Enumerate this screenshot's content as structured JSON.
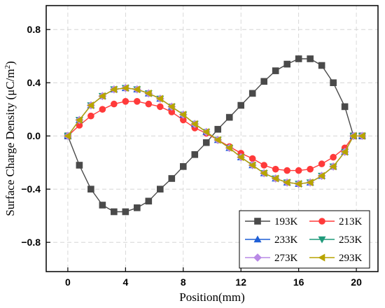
{
  "chart_data": {
    "type": "line",
    "xlabel": "Position(mm)",
    "ylabel_parts": [
      "Surface Charge Density (",
      "μC/m",
      "2",
      ")"
    ],
    "xlim": [
      -1.5,
      21.5
    ],
    "ylim": [
      -1.02,
      0.98
    ],
    "xticks": [
      0,
      4,
      8,
      12,
      16,
      20
    ],
    "xtick_labels": [
      "0",
      "4",
      "8",
      "12",
      "16",
      "20"
    ],
    "yticks": [
      0.8,
      0.4,
      0.0,
      -0.4,
      -0.8
    ],
    "ytick_labels": [
      "0.8",
      "0.4",
      "0.0",
      "−0.4",
      "−0.8"
    ],
    "grid": "dashed horizontal and vertical at ticks",
    "legend_position": "bottom-right",
    "x": [
      0.0,
      0.8,
      1.6,
      2.4,
      3.2,
      4.0,
      4.8,
      5.6,
      6.4,
      7.2,
      8.0,
      8.8,
      9.6,
      10.4,
      11.2,
      12.0,
      12.8,
      13.6,
      14.4,
      15.2,
      16.0,
      16.8,
      17.6,
      18.4,
      19.2,
      19.8,
      20.4
    ],
    "series": [
      {
        "name": "193K",
        "color": "#4a4a4a",
        "marker": "square",
        "values": [
          0.0,
          -0.22,
          -0.4,
          -0.52,
          -0.57,
          -0.57,
          -0.54,
          -0.49,
          -0.4,
          -0.32,
          -0.23,
          -0.14,
          -0.05,
          0.05,
          0.14,
          0.23,
          0.32,
          0.41,
          0.49,
          0.54,
          0.58,
          0.58,
          0.53,
          0.4,
          0.22,
          0.0,
          0.0
        ]
      },
      {
        "name": "213K",
        "color": "#ff3a3a",
        "marker": "circle",
        "values": [
          0.0,
          0.08,
          0.15,
          0.2,
          0.24,
          0.26,
          0.26,
          0.24,
          0.22,
          0.18,
          0.12,
          0.06,
          0.02,
          -0.03,
          -0.08,
          -0.13,
          -0.17,
          -0.22,
          -0.25,
          -0.26,
          -0.26,
          -0.25,
          -0.21,
          -0.16,
          -0.09,
          0.0,
          0.0
        ]
      },
      {
        "name": "233K",
        "color": "#1f5fd6",
        "marker": "triangle-up",
        "values": [
          0.0,
          0.12,
          0.23,
          0.3,
          0.35,
          0.36,
          0.35,
          0.32,
          0.28,
          0.22,
          0.16,
          0.09,
          0.03,
          -0.03,
          -0.09,
          -0.16,
          -0.22,
          -0.28,
          -0.32,
          -0.35,
          -0.36,
          -0.35,
          -0.3,
          -0.23,
          -0.12,
          0.0,
          0.0
        ]
      },
      {
        "name": "253K",
        "color": "#1f9a7a",
        "marker": "triangle-down",
        "values": [
          0.0,
          0.12,
          0.23,
          0.3,
          0.35,
          0.36,
          0.35,
          0.32,
          0.28,
          0.22,
          0.16,
          0.09,
          0.03,
          -0.03,
          -0.09,
          -0.16,
          -0.22,
          -0.28,
          -0.32,
          -0.35,
          -0.36,
          -0.35,
          -0.3,
          -0.23,
          -0.12,
          0.0,
          0.0
        ]
      },
      {
        "name": "273K",
        "color": "#b98ae6",
        "marker": "diamond",
        "values": [
          0.0,
          0.12,
          0.23,
          0.3,
          0.35,
          0.36,
          0.35,
          0.32,
          0.28,
          0.22,
          0.16,
          0.09,
          0.03,
          -0.03,
          -0.09,
          -0.16,
          -0.22,
          -0.28,
          -0.32,
          -0.35,
          -0.36,
          -0.35,
          -0.3,
          -0.23,
          -0.12,
          0.0,
          0.0
        ]
      },
      {
        "name": "293K",
        "color": "#b8a400",
        "marker": "triangle-left",
        "values": [
          0.0,
          0.12,
          0.23,
          0.3,
          0.35,
          0.36,
          0.35,
          0.32,
          0.28,
          0.22,
          0.16,
          0.09,
          0.03,
          -0.03,
          -0.09,
          -0.16,
          -0.22,
          -0.28,
          -0.32,
          -0.35,
          -0.36,
          -0.35,
          -0.3,
          -0.23,
          -0.12,
          0.0,
          0.0
        ]
      }
    ]
  }
}
